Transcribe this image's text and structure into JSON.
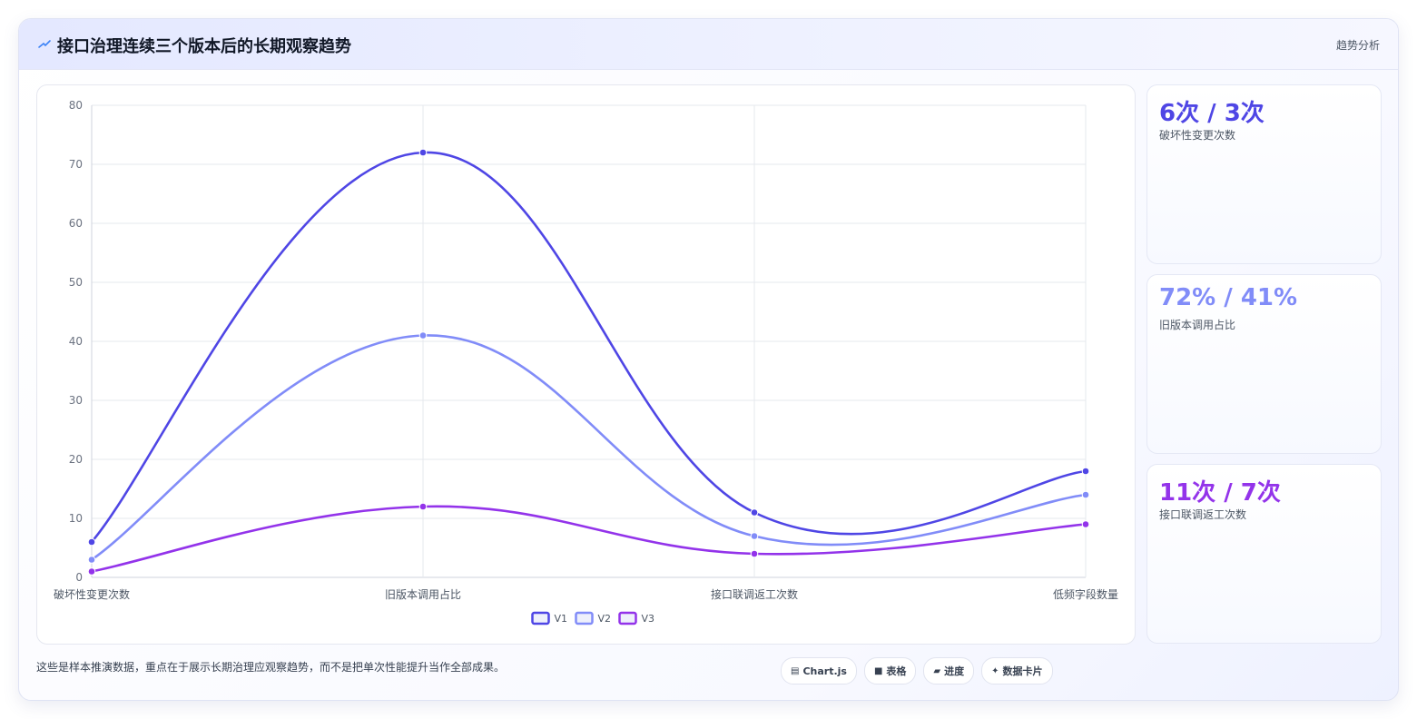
{
  "header": {
    "title": "接口治理连续三个版本后的长期观察趋势",
    "tag": "趋势分析"
  },
  "chart_data": {
    "type": "line",
    "categories": [
      "破坏性变更次数",
      "旧版本调用占比",
      "接口联调返工次数",
      "低频字段数量"
    ],
    "series": [
      {
        "name": "V1",
        "values": [
          6,
          72,
          11,
          18
        ],
        "color": "#4f46e5"
      },
      {
        "name": "V2",
        "values": [
          3,
          41,
          7,
          14
        ],
        "color": "#818cf8"
      },
      {
        "name": "V3",
        "values": [
          1,
          12,
          4,
          9
        ],
        "color": "#9333ea"
      }
    ],
    "ylim": [
      0,
      80
    ],
    "yticks": [
      0,
      10,
      20,
      30,
      40,
      50,
      60,
      70,
      80
    ],
    "legend_position": "bottom",
    "grid": true,
    "smooth": true
  },
  "stats": [
    {
      "value": "6次 / 3次",
      "label": "破坏性变更次数",
      "color": "#4f46e5"
    },
    {
      "value": "72% / 41%",
      "label": "旧版本调用占比",
      "color": "#818cf8"
    },
    {
      "value": "11次 / 7次",
      "label": "接口联调返工次数",
      "color": "#9333ea"
    }
  ],
  "footer": {
    "note": "这些是样本推演数据，重点在于展示长期治理应观察趋势，而不是把单次性能提升当作全部成果。",
    "chips": [
      {
        "icon": "▤",
        "label": "Chart.js",
        "icon_name": "chart-icon"
      },
      {
        "icon": "■",
        "label": "表格",
        "icon_name": "table-icon"
      },
      {
        "icon": "▰",
        "label": "进度",
        "icon_name": "progress-icon"
      },
      {
        "icon": "✦",
        "label": "数据卡片",
        "icon_name": "card-icon"
      }
    ]
  }
}
